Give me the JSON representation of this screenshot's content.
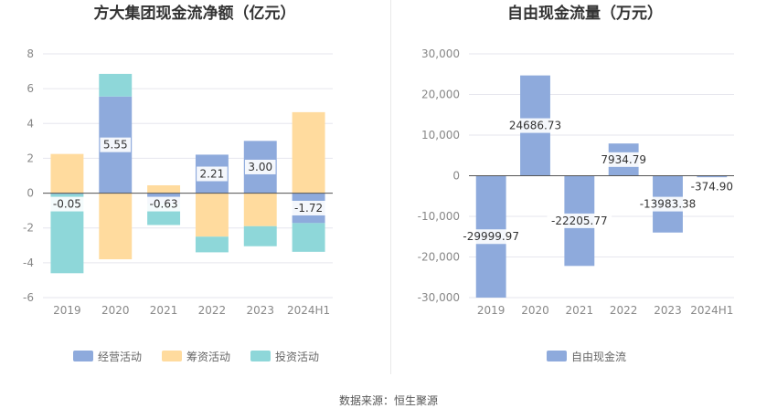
{
  "chart_data": [
    {
      "type": "bar",
      "stacked": true,
      "title": "方大集团现金流净额（亿元）",
      "categories": [
        "2019",
        "2020",
        "2021",
        "2022",
        "2023",
        "2024H1"
      ],
      "ylim": [
        -6,
        8
      ],
      "yticks": [
        "8",
        "6",
        "4",
        "2",
        "0",
        "-2",
        "-4",
        "-6"
      ],
      "ytick_values": [
        8,
        6,
        4,
        2,
        0,
        -2,
        -4,
        -6
      ],
      "grid": true,
      "legend_position": "bottom",
      "series": [
        {
          "name": "经营活动",
          "color": "#8eaadc",
          "values": [
            -0.05,
            5.55,
            -0.63,
            2.21,
            3.0,
            -1.72
          ]
        },
        {
          "name": "筹资活动",
          "color": "#ffdb9e",
          "values": [
            2.25,
            -3.8,
            0.45,
            -2.5,
            -1.9,
            4.65
          ]
        },
        {
          "name": "投资活动",
          "color": "#8ed7d9",
          "values": [
            -4.55,
            1.3,
            -1.2,
            -0.9,
            -1.15,
            -1.65
          ]
        }
      ],
      "data_labels": [
        "-0.05",
        "5.55",
        "-0.63",
        "2.21",
        "3.00",
        "-1.72"
      ]
    },
    {
      "type": "bar",
      "title": "自由现金流量（万元）",
      "categories": [
        "2019",
        "2020",
        "2021",
        "2022",
        "2023",
        "2024H1"
      ],
      "ylim": [
        -30000,
        30000
      ],
      "yticks": [
        "30,000",
        "20,000",
        "10,000",
        "0",
        "-10,000",
        "-20,000",
        "-30,000"
      ],
      "ytick_values": [
        30000,
        20000,
        10000,
        0,
        -10000,
        -20000,
        -30000
      ],
      "grid": true,
      "legend_position": "bottom",
      "series": [
        {
          "name": "自由现金流",
          "color": "#8eaadc",
          "values": [
            -29999.97,
            24686.73,
            -22205.77,
            7934.79,
            -13983.38,
            -374.9
          ]
        }
      ],
      "data_labels": [
        "-29999.97",
        "24686.73",
        "-22205.77",
        "7934.79",
        "-13983.38",
        "-374.90"
      ]
    }
  ],
  "source": "数据来源：恒生聚源"
}
